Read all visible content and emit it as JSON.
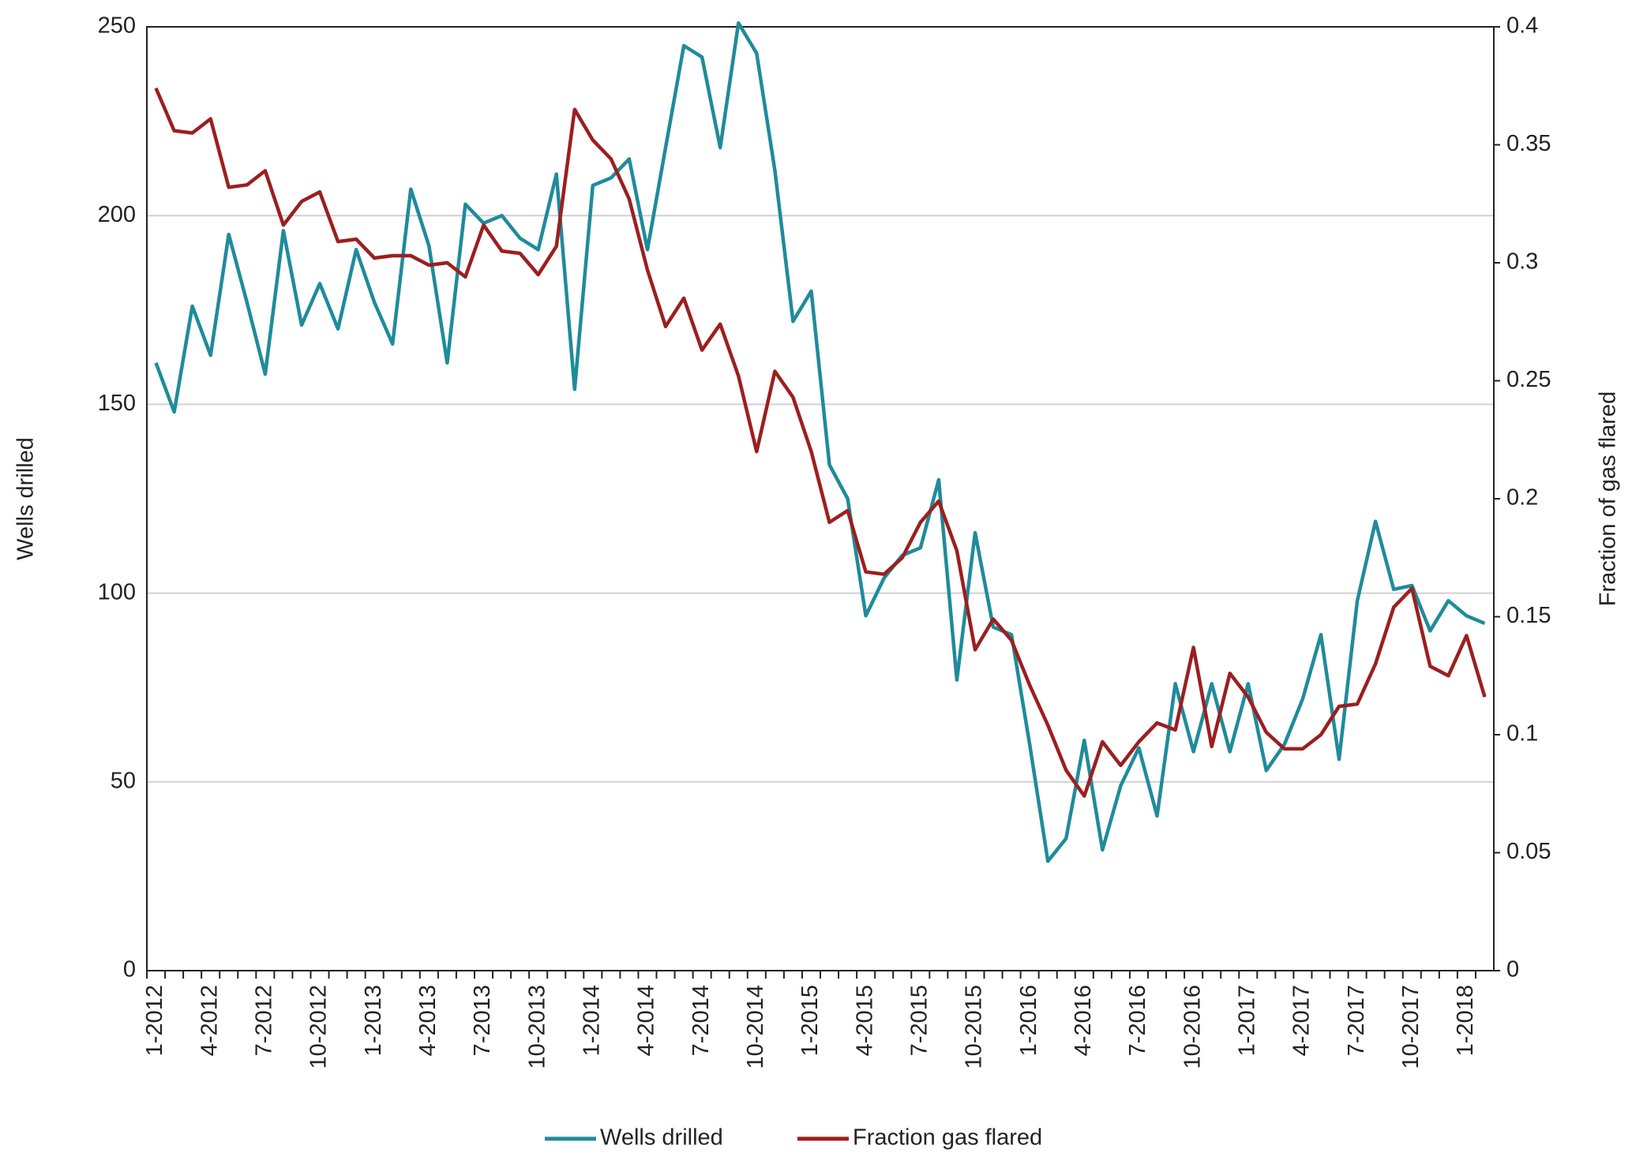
{
  "chart_data": {
    "type": "line",
    "y_label": "Wells drilled",
    "y2_label": "Fraction of gas flared",
    "categories": [
      "1-2012",
      null,
      null,
      "4-2012",
      null,
      null,
      "7-2012",
      null,
      null,
      "10-2012",
      null,
      null,
      "1-2013",
      null,
      null,
      "4-2013",
      null,
      null,
      "7-2013",
      null,
      null,
      "10-2013",
      null,
      null,
      "1-2014",
      null,
      null,
      "4-2014",
      null,
      null,
      "7-2014",
      null,
      null,
      "10-2014",
      null,
      null,
      "1-2015",
      null,
      null,
      "4-2015",
      null,
      null,
      "7-2015",
      null,
      null,
      "10-2015",
      null,
      null,
      "1-2016",
      null,
      null,
      "4-2016",
      null,
      null,
      "7-2016",
      null,
      null,
      "10-2016",
      null,
      null,
      "1-2017",
      null,
      null,
      "4-2017",
      null,
      null,
      "7-2017",
      null,
      null,
      "10-2017",
      null,
      null,
      "1-2018",
      null
    ],
    "series": [
      {
        "name": "Wells drilled",
        "color": "#1f8b9b",
        "axis": "y",
        "values": [
          161,
          148,
          176,
          163,
          195,
          177,
          158,
          196,
          171,
          182,
          170,
          191,
          177,
          166,
          207,
          192,
          161,
          203,
          198,
          200,
          194,
          191,
          211,
          154,
          208,
          210,
          215,
          191,
          218,
          245,
          242,
          218,
          251,
          243,
          212,
          172,
          180,
          134,
          125,
          94,
          104,
          110,
          112,
          130,
          77,
          116,
          91,
          89,
          60,
          29,
          35,
          61,
          32,
          49,
          59,
          41,
          76,
          58,
          76,
          58,
          76,
          53,
          60,
          72,
          89,
          56,
          98,
          119,
          101,
          102,
          90,
          98,
          94,
          92
        ]
      },
      {
        "name": "Fraction gas flared",
        "color": "#9c1f1f",
        "axis": "y2",
        "values": [
          0.374,
          0.356,
          0.355,
          0.361,
          0.332,
          0.333,
          0.339,
          0.316,
          0.326,
          0.33,
          0.309,
          0.31,
          0.302,
          0.303,
          0.303,
          0.299,
          0.3,
          0.294,
          0.316,
          0.305,
          0.304,
          0.295,
          0.307,
          0.365,
          0.352,
          0.344,
          0.327,
          0.297,
          0.273,
          0.285,
          0.263,
          0.274,
          0.252,
          0.22,
          0.254,
          0.243,
          0.22,
          0.19,
          0.195,
          0.169,
          0.168,
          0.175,
          0.19,
          0.199,
          0.178,
          0.136,
          0.149,
          0.14,
          0.121,
          0.104,
          0.085,
          0.074,
          0.097,
          0.087,
          0.097,
          0.105,
          0.102,
          0.137,
          0.095,
          0.126,
          0.116,
          0.101,
          0.094,
          0.094,
          0.1,
          0.112,
          0.113,
          0.13,
          0.154,
          0.162,
          0.129,
          0.125,
          0.142,
          0.116
        ]
      }
    ],
    "ylim": [
      0,
      250
    ],
    "yticks": [
      0,
      50,
      100,
      150,
      200,
      250
    ],
    "y2lim": [
      0,
      0.4
    ],
    "y2ticks": [
      0,
      0.05,
      0.1,
      0.15,
      0.2,
      0.25,
      0.3,
      0.35,
      0.4
    ],
    "grid": true,
    "legend": "bottom"
  }
}
